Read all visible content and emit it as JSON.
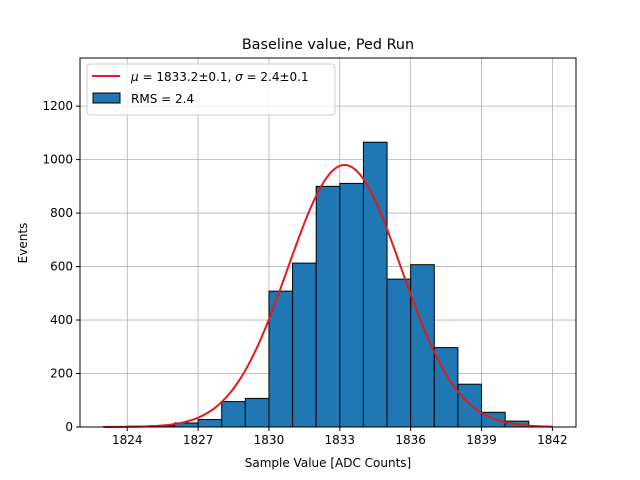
{
  "chart_data": {
    "type": "bar",
    "title": "Baseline value, Ped Run",
    "xlabel": "Sample Value [ADC Counts]",
    "ylabel": "Events",
    "xlim": [
      1822.0,
      1843.0
    ],
    "ylim": [
      0,
      1380
    ],
    "xticks": [
      1824,
      1827,
      1830,
      1833,
      1836,
      1839,
      1842
    ],
    "yticks": [
      0,
      200,
      400,
      600,
      800,
      1000,
      1200
    ],
    "grid": true,
    "bar_color": "#1f77b4",
    "fit_color": "#e31a1c",
    "histogram": {
      "bin_edges": [
        1823.0,
        1824.0,
        1825.0,
        1826.0,
        1827.0,
        1828.0,
        1829.0,
        1830.0,
        1831.0,
        1832.0,
        1833.0,
        1834.0,
        1835.0,
        1836.0,
        1837.0,
        1838.0,
        1839.0,
        1840.0,
        1841.0
      ],
      "counts": [
        2,
        3,
        5,
        15,
        28,
        95,
        107,
        508,
        613,
        900,
        911,
        1065,
        553,
        607,
        297,
        160,
        55,
        22
      ]
    },
    "fit": {
      "label_prefix": "μ",
      "label": "= 1833.2±0.1, σ = 2.4±0.1",
      "label_symbol_sigma": "σ",
      "mu": 1833.2,
      "sigma": 2.4,
      "amplitude": 980,
      "x_range": [
        1823.0,
        1842.0
      ]
    },
    "legend": {
      "position": "top-left",
      "fit_text_mu": "μ",
      "fit_text_mid": " = 1833.2±0.1, ",
      "fit_text_sigma": "σ",
      "fit_text_end": " = 2.4±0.1",
      "rms_text": "RMS = 2.4"
    }
  }
}
